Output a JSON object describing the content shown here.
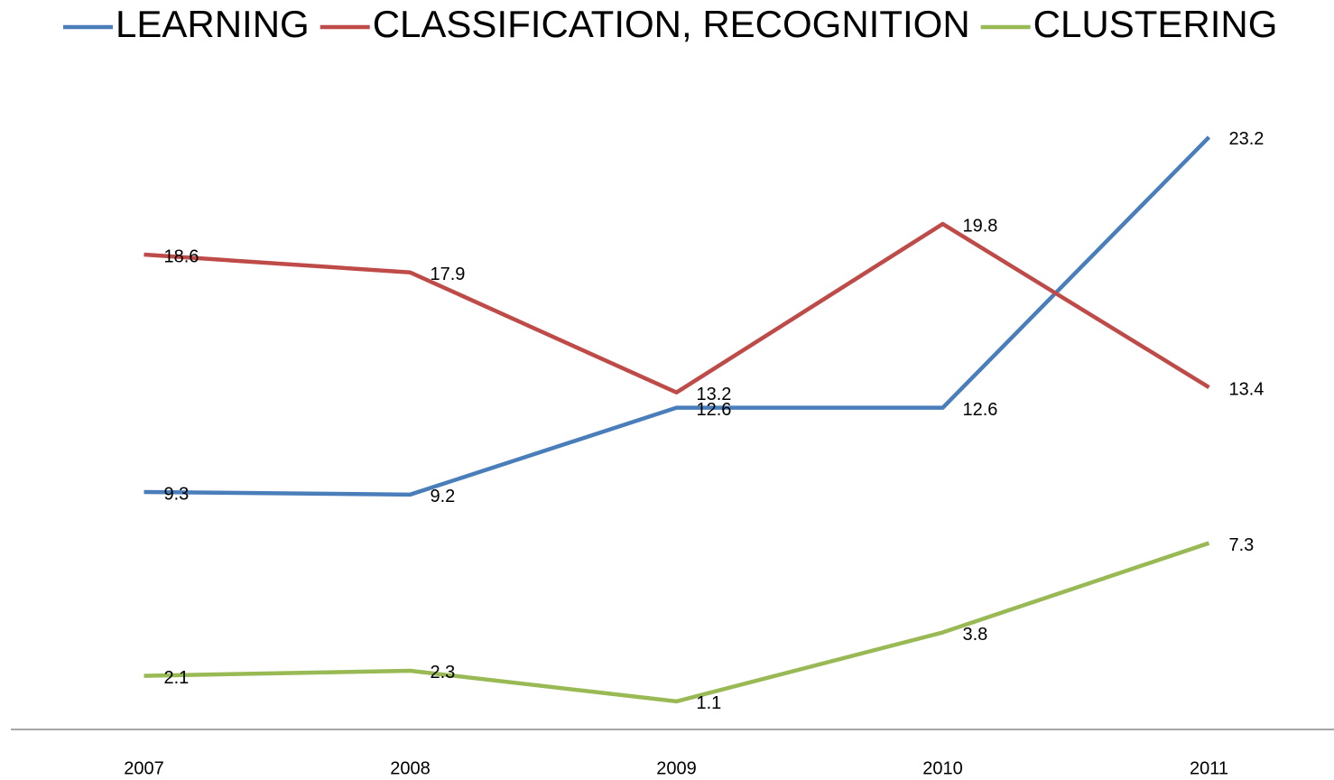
{
  "chart_data": {
    "type": "line",
    "categories": [
      "2007",
      "2008",
      "2009",
      "2010",
      "2011"
    ],
    "series": [
      {
        "name": "LEARNING",
        "color": "#4a7ebb",
        "values": [
          9.3,
          9.2,
          12.6,
          12.6,
          23.2
        ]
      },
      {
        "name": "CLASSIFICATION, RECOGNITION",
        "color": "#be4b48",
        "values": [
          18.6,
          17.9,
          13.2,
          19.8,
          13.4
        ]
      },
      {
        "name": "CLUSTERING",
        "color": "#98b954",
        "values": [
          2.1,
          2.3,
          1.1,
          3.8,
          7.3
        ]
      }
    ],
    "ylim": [
      0,
      25
    ],
    "legend": "top",
    "data_labels": true
  }
}
